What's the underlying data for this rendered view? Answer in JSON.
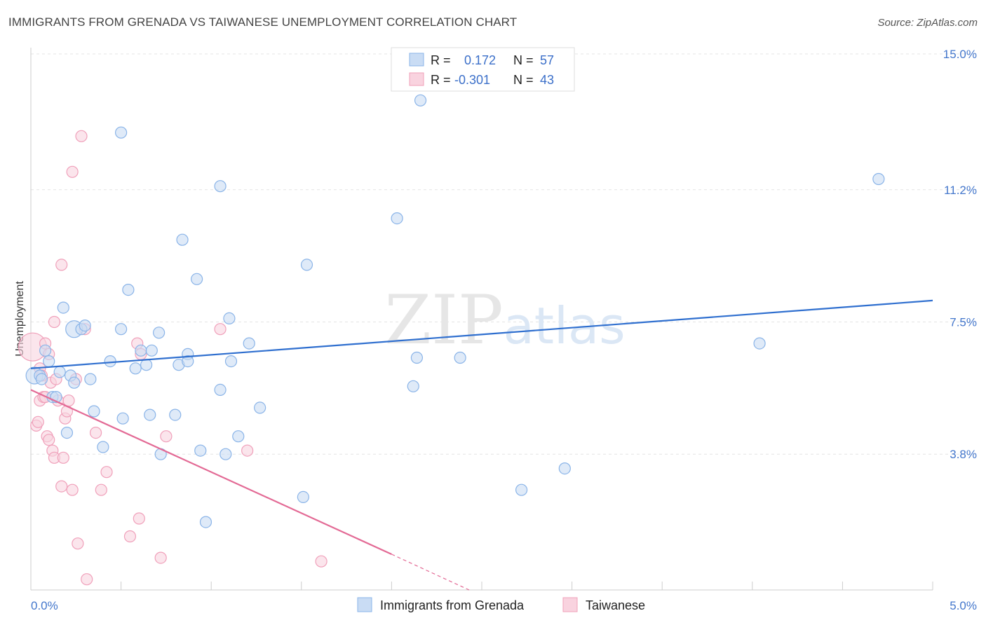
{
  "chart_data": {
    "type": "scatter",
    "title": "IMMIGRANTS FROM GRENADA VS TAIWANESE UNEMPLOYMENT CORRELATION CHART",
    "source": "Source: ZipAtlas.com",
    "xlabel": "",
    "ylabel": "Unemployment",
    "xlim": [
      0.0,
      5.0
    ],
    "ylim": [
      0.0,
      15.0
    ],
    "x_tick_labels": [
      "0.0%",
      "5.0%"
    ],
    "y_ticks": [
      3.8,
      7.5,
      11.2,
      15.0
    ],
    "y_tick_labels": [
      "3.8%",
      "7.5%",
      "11.2%",
      "15.0%"
    ],
    "watermark": "ZIPatlas",
    "legend": {
      "rows": [
        {
          "r_label": "R =",
          "r_value": "0.172",
          "n_label": "N =",
          "n_value": "57"
        },
        {
          "r_label": "R =",
          "r_value": "-0.301",
          "n_label": "N =",
          "n_value": "43"
        }
      ]
    },
    "series": [
      {
        "name": "Immigrants from Grenada",
        "color": "#8ab4e8",
        "fill": "#c9dcf4",
        "line_color": "#2f6fcf",
        "trend": {
          "x0": 0.0,
          "y0": 6.2,
          "x1": 5.0,
          "y1": 8.1
        },
        "points": [
          [
            0.02,
            6.0
          ],
          [
            0.05,
            6.0
          ],
          [
            0.06,
            5.9
          ],
          [
            0.08,
            6.7
          ],
          [
            0.1,
            6.4
          ],
          [
            0.12,
            5.4
          ],
          [
            0.14,
            5.4
          ],
          [
            0.16,
            6.1
          ],
          [
            0.18,
            7.9
          ],
          [
            0.2,
            4.4
          ],
          [
            0.22,
            6.0
          ],
          [
            0.24,
            5.8
          ],
          [
            0.24,
            7.3
          ],
          [
            0.28,
            7.3
          ],
          [
            0.3,
            7.4
          ],
          [
            0.33,
            5.9
          ],
          [
            0.35,
            5.0
          ],
          [
            0.4,
            4.0
          ],
          [
            0.44,
            6.4
          ],
          [
            0.5,
            7.3
          ],
          [
            0.51,
            4.8
          ],
          [
            0.5,
            12.8
          ],
          [
            0.54,
            8.4
          ],
          [
            0.58,
            6.2
          ],
          [
            0.61,
            6.7
          ],
          [
            0.64,
            6.3
          ],
          [
            0.66,
            4.9
          ],
          [
            0.67,
            6.7
          ],
          [
            0.71,
            7.2
          ],
          [
            0.72,
            3.8
          ],
          [
            0.8,
            4.9
          ],
          [
            0.82,
            6.3
          ],
          [
            0.84,
            9.8
          ],
          [
            0.87,
            6.6
          ],
          [
            0.87,
            6.4
          ],
          [
            0.92,
            8.7
          ],
          [
            0.94,
            3.9
          ],
          [
            0.97,
            1.9
          ],
          [
            1.05,
            11.3
          ],
          [
            1.05,
            5.6
          ],
          [
            1.08,
            3.8
          ],
          [
            1.1,
            7.6
          ],
          [
            1.11,
            6.4
          ],
          [
            1.15,
            4.3
          ],
          [
            1.21,
            6.9
          ],
          [
            1.27,
            5.1
          ],
          [
            1.51,
            2.6
          ],
          [
            1.53,
            9.1
          ],
          [
            2.03,
            10.4
          ],
          [
            2.12,
            5.7
          ],
          [
            2.14,
            6.5
          ],
          [
            2.16,
            13.7
          ],
          [
            2.38,
            6.5
          ],
          [
            2.72,
            2.8
          ],
          [
            2.96,
            3.4
          ],
          [
            4.04,
            6.9
          ],
          [
            4.7,
            11.5
          ]
        ],
        "point_sizes": {
          "0.24,7.3": "large",
          "0.02,6.0": "large"
        }
      },
      {
        "name": "Taiwanese",
        "color": "#f0a0ba",
        "fill": "#f9d3df",
        "line_color": "#e36a95",
        "trend": {
          "x0": 0.0,
          "y0": 5.6,
          "x1": 2.0,
          "y1": 1.0
        },
        "trend_dashed": {
          "x0": 2.0,
          "y0": 1.0,
          "x1": 2.43,
          "y1": 0.0
        },
        "points": [
          [
            0.01,
            6.8
          ],
          [
            0.03,
            4.6
          ],
          [
            0.04,
            4.7
          ],
          [
            0.05,
            5.3
          ],
          [
            0.05,
            6.2
          ],
          [
            0.07,
            5.4
          ],
          [
            0.08,
            6.9
          ],
          [
            0.09,
            4.3
          ],
          [
            0.1,
            4.2
          ],
          [
            0.1,
            6.6
          ],
          [
            0.11,
            5.8
          ],
          [
            0.12,
            3.9
          ],
          [
            0.13,
            7.5
          ],
          [
            0.13,
            3.7
          ],
          [
            0.14,
            5.9
          ],
          [
            0.15,
            5.3
          ],
          [
            0.17,
            9.1
          ],
          [
            0.17,
            2.9
          ],
          [
            0.18,
            3.7
          ],
          [
            0.19,
            4.8
          ],
          [
            0.2,
            5.0
          ],
          [
            0.21,
            5.3
          ],
          [
            0.23,
            11.7
          ],
          [
            0.23,
            2.8
          ],
          [
            0.25,
            5.9
          ],
          [
            0.26,
            1.3
          ],
          [
            0.28,
            12.7
          ],
          [
            0.3,
            7.3
          ],
          [
            0.31,
            0.3
          ],
          [
            0.36,
            4.4
          ],
          [
            0.39,
            2.8
          ],
          [
            0.42,
            3.3
          ],
          [
            0.55,
            1.5
          ],
          [
            0.6,
            2.0
          ],
          [
            0.59,
            6.9
          ],
          [
            0.61,
            6.6
          ],
          [
            0.72,
            0.9
          ],
          [
            0.75,
            4.3
          ],
          [
            1.05,
            7.3
          ],
          [
            1.2,
            3.9
          ],
          [
            1.61,
            0.8
          ],
          [
            0.06,
            6.0
          ],
          [
            0.08,
            5.4
          ]
        ]
      }
    ]
  }
}
